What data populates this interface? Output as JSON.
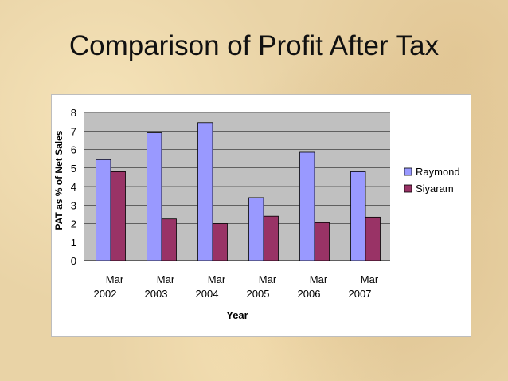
{
  "slide": {
    "title": "Comparison of Profit After Tax"
  },
  "chart_data": {
    "type": "bar",
    "title": "",
    "xlabel": "Year",
    "ylabel": "PAT as % of Net Sales",
    "ylim": [
      0,
      8
    ],
    "yticks": [
      "0",
      "1",
      "2",
      "3",
      "4",
      "5",
      "6",
      "7",
      "8"
    ],
    "categories": [
      [
        "Mar",
        "2002"
      ],
      [
        "Mar",
        "2003"
      ],
      [
        "Mar",
        "2004"
      ],
      [
        "Mar",
        "2005"
      ],
      [
        "Mar",
        "2006"
      ],
      [
        "Mar",
        "2007"
      ]
    ],
    "series": [
      {
        "name": "Raymond",
        "color": "#9999ff",
        "values": [
          5.45,
          6.9,
          7.45,
          3.4,
          5.85,
          4.8
        ]
      },
      {
        "name": "Siyaram",
        "color": "#993366",
        "values": [
          4.8,
          2.25,
          2.0,
          2.4,
          2.05,
          2.35
        ]
      }
    ],
    "grid": true,
    "legend_position": "right"
  }
}
